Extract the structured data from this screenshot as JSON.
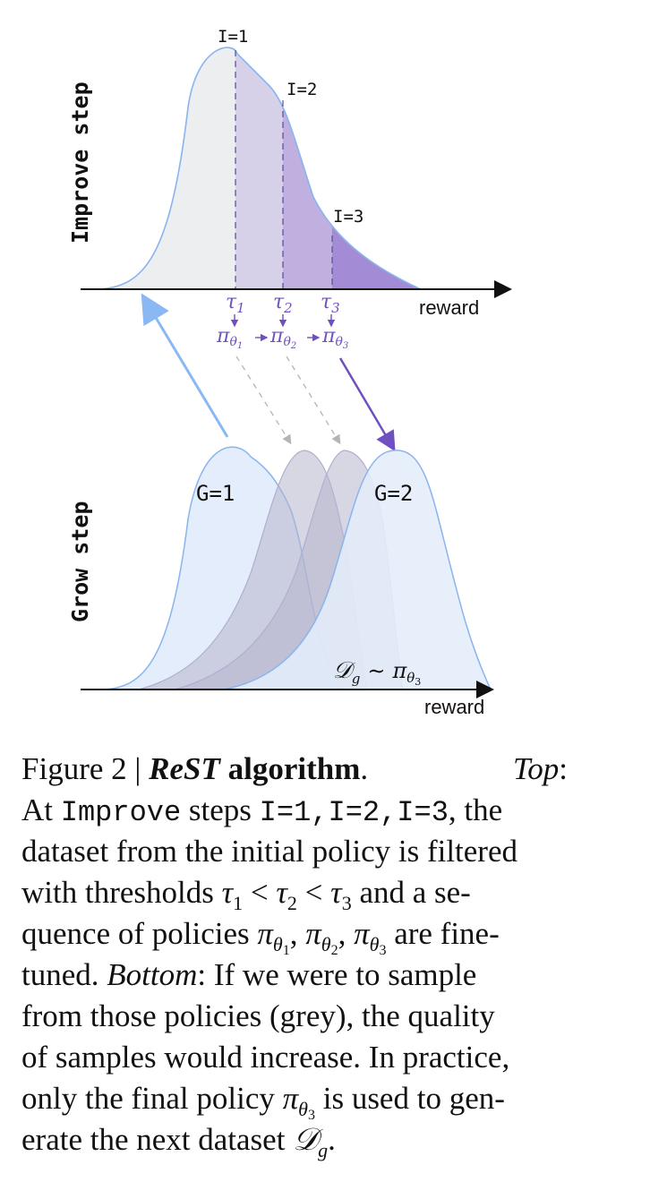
{
  "improve": {
    "axis_label": "Improve step",
    "x_label": "reward",
    "iterations": [
      "I=1",
      "I=2",
      "I=3"
    ],
    "thresholds": [
      "τ",
      "τ",
      "τ"
    ],
    "threshold_subs": [
      "1",
      "2",
      "3"
    ],
    "policy_symbol": "π",
    "policy_subs": [
      "θ",
      "θ",
      "θ"
    ],
    "policy_subsubs": [
      "1",
      "2",
      "3"
    ],
    "policy_arrow": "→"
  },
  "grow": {
    "axis_label": "Grow step",
    "x_label": "reward",
    "labels": [
      "G=1",
      "G=2"
    ],
    "dataset_symbol": "𝒟",
    "dataset_sub": "g",
    "sampling_symbol": "∼",
    "policy_symbol": "π",
    "policy_sub": "θ",
    "policy_subsub": "3"
  },
  "colors": {
    "curve_stroke": "#8ab4ee",
    "initial_fill": "#eceeef",
    "band1_fill": "#d6d1e8",
    "band2_fill": "#bfb0e0",
    "band3_fill": "#a38cd5",
    "grow_fill": "#e4edfb",
    "grey_fill": "#b7b5cc",
    "purple": "#7050c0",
    "blue_arrow": "#8ab8f2"
  },
  "caption": {
    "figure_label": "Figure 2",
    "separator": "|",
    "title_italic": "ReST",
    "title_rest": "algorithm",
    "period": ".",
    "top_label": "Top",
    "colon": ":",
    "line2_a": "At",
    "improve_code": "Improve",
    "line2_b": "steps",
    "i1": "I=1",
    "i2": "I=2",
    "i3": "I=3",
    "comma": ",",
    "line2_c": ", the",
    "line3": "dataset from the initial policy is filtered",
    "line4_a": "with thresholds",
    "tau": "τ",
    "less": "<",
    "sub1": "1",
    "sub2": "2",
    "sub3": "3",
    "line4_b": "and a se-",
    "line5_a": "quence of policies",
    "pi": "π",
    "theta": "θ",
    "line5_b": "are fine-",
    "line6_a": "tuned.",
    "bottom_label": "Bottom",
    "line6_b": "If we were to sample",
    "line7": "from those policies (grey), the quality",
    "line8": "of samples would increase. In practice,",
    "line9_a": "only the final policy",
    "line9_b": "is used to gen-",
    "line10_a": "erate the next dataset",
    "dataset_symbol": "𝒟",
    "dataset_sub": "g"
  }
}
